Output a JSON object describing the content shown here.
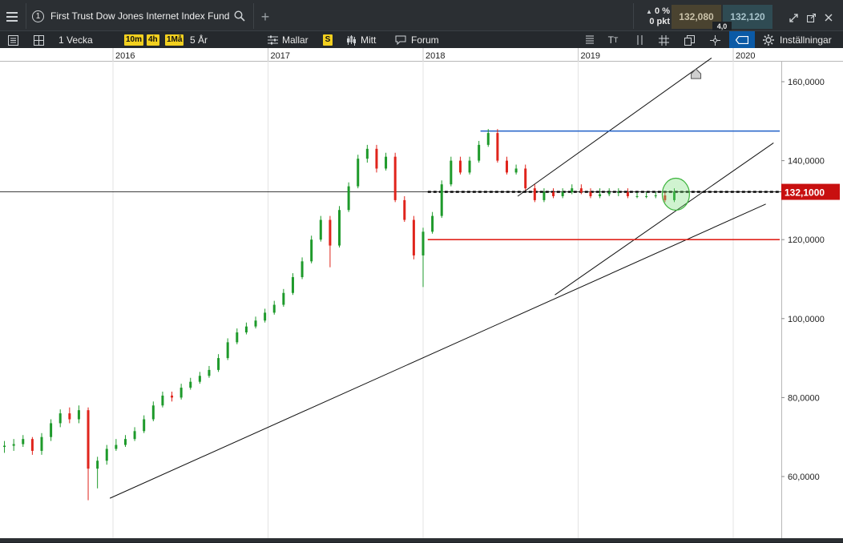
{
  "header": {
    "menu_icon": "hamburger-icon",
    "instrument_number": "1",
    "instrument_name": "First Trust Dow Jones Internet Index Fund",
    "change_pct": "0 %",
    "change_pts": "0 pkt",
    "bid": "132,080",
    "ask": "132,120",
    "spread": "4,0",
    "colors": {
      "bid_bg": "#4a4330",
      "ask_bg": "#2f4b53"
    }
  },
  "toolbar": {
    "interval": "1 Vecka",
    "timeframes": [
      "10m",
      "4h",
      "1Må"
    ],
    "range": "5 År",
    "templates": "Mallar",
    "s_chip": "S",
    "mine": "Mitt",
    "forum": "Forum",
    "settings": "Inställningar"
  },
  "chart_data": {
    "type": "candlestick",
    "x_tick_labels": [
      "2016",
      "2017",
      "2018",
      "2019",
      "2020"
    ],
    "y_tick_labels": [
      "160,0000",
      "140,0000",
      "120,0000",
      "100,0000",
      "80,0000",
      "60,0000"
    ],
    "ylim": [
      50,
      165
    ],
    "current_price_label": "132,1000",
    "current_price": 132.1,
    "grid": "vertical-only",
    "colors": {
      "up": "#1e9a2b",
      "down": "#e0241c",
      "resistance": "#1f5fc8",
      "support": "#e0241c",
      "trend": "#111111",
      "price_label": "#c80f0f"
    },
    "horizontal_lines": [
      {
        "kind": "resistance",
        "value": 147.5,
        "x_from": 2018.37,
        "x_to": 2020.3
      },
      {
        "kind": "support",
        "value": 120.0,
        "x_from": 2018.03,
        "x_to": 2020.3
      },
      {
        "kind": "dashed-current",
        "value": 132.1,
        "x_from": 2018.03,
        "x_to": 2020.3
      }
    ],
    "trend_lines": [
      {
        "from": [
          2015.98,
          54.5
        ],
        "to": [
          2020.21,
          129.0
        ]
      },
      {
        "from": [
          2018.85,
          106.0
        ],
        "to": [
          2020.26,
          144.5
        ]
      },
      {
        "from": [
          2018.61,
          131.0
        ],
        "to": [
          2019.86,
          166.0
        ]
      }
    ],
    "highlight_circle": {
      "x": 2019.63,
      "y": 131.5
    },
    "series": [
      {
        "name": "",
        "x": [
          2015.3,
          2015.36,
          2015.42,
          2015.48,
          2015.54,
          2015.6,
          2015.66,
          2015.72,
          2015.78,
          2015.84,
          2015.9,
          2015.96,
          2016.02,
          2016.08,
          2016.14,
          2016.2,
          2016.26,
          2016.32,
          2016.38,
          2016.44,
          2016.5,
          2016.56,
          2016.62,
          2016.68,
          2016.74,
          2016.8,
          2016.86,
          2016.92,
          2016.98,
          2017.04,
          2017.1,
          2017.16,
          2017.22,
          2017.28,
          2017.34,
          2017.4,
          2017.46,
          2017.52,
          2017.58,
          2017.64,
          2017.7,
          2017.76,
          2017.82,
          2017.88,
          2017.94,
          2018.0,
          2018.06,
          2018.12,
          2018.18,
          2018.24,
          2018.3,
          2018.36,
          2018.42,
          2018.48,
          2018.54,
          2018.6,
          2018.66,
          2018.72,
          2018.78,
          2018.84,
          2018.9,
          2018.96,
          2019.02,
          2019.08,
          2019.14,
          2019.2,
          2019.26,
          2019.32,
          2019.38,
          2019.44,
          2019.5,
          2019.56,
          2019.62
        ],
        "open": [
          67.5,
          67.8,
          68.2,
          69.5,
          66.5,
          70.0,
          73.5,
          76.0,
          74.5,
          76.8,
          62.0,
          64.0,
          67.0,
          68.0,
          69.5,
          71.5,
          74.5,
          78.0,
          80.5,
          80.0,
          82.5,
          84.0,
          85.5,
          87.0,
          90.0,
          94.0,
          96.5,
          98.0,
          99.5,
          101.5,
          103.5,
          106.5,
          110.5,
          114.5,
          120.0,
          125.0,
          118.5,
          127.5,
          133.5,
          140.5,
          143.0,
          138.0,
          141.0,
          130.0,
          125.0,
          116.0,
          122.0,
          126.0,
          134.0,
          140.0,
          137.0,
          140.0,
          144.0,
          147.0,
          140.0,
          137.0,
          138.0,
          133.0,
          130.0,
          132.0,
          131.0,
          132.0,
          133.0,
          132.0,
          131.0,
          131.5,
          132.0,
          132.0,
          131.0,
          131.0,
          131.0,
          131.2,
          130.0
        ],
        "close": [
          67.8,
          68.2,
          69.5,
          66.5,
          70.0,
          73.5,
          76.0,
          74.5,
          76.8,
          62.0,
          64.0,
          67.0,
          68.0,
          69.5,
          71.5,
          74.5,
          78.0,
          80.5,
          80.0,
          82.5,
          84.0,
          85.5,
          87.0,
          90.0,
          94.0,
          96.5,
          98.0,
          99.5,
          101.5,
          103.5,
          106.5,
          110.5,
          114.5,
          120.0,
          125.0,
          118.5,
          127.5,
          133.5,
          140.5,
          143.0,
          138.0,
          141.0,
          130.0,
          125.0,
          116.0,
          122.0,
          126.0,
          134.0,
          140.0,
          137.0,
          140.0,
          144.0,
          147.0,
          140.0,
          137.0,
          138.0,
          133.0,
          130.0,
          132.0,
          131.0,
          132.0,
          133.0,
          132.0,
          131.0,
          131.5,
          132.0,
          132.0,
          131.0,
          131.0,
          131.0,
          131.2,
          130.0,
          132.1
        ],
        "high": [
          69.0,
          69.5,
          70.5,
          70.0,
          71.0,
          74.5,
          77.0,
          77.5,
          78.0,
          77.5,
          65.0,
          68.0,
          69.5,
          70.5,
          72.5,
          75.5,
          79.0,
          81.5,
          81.5,
          83.5,
          85.0,
          86.5,
          88.0,
          91.0,
          95.0,
          97.5,
          99.0,
          100.5,
          102.5,
          104.5,
          107.5,
          111.5,
          115.5,
          121.0,
          126.0,
          126.0,
          128.5,
          134.5,
          141.5,
          144.0,
          144.0,
          142.0,
          142.0,
          131.0,
          126.0,
          123.0,
          127.0,
          135.0,
          141.0,
          141.0,
          141.0,
          145.0,
          148.0,
          148.0,
          141.0,
          139.0,
          139.0,
          134.0,
          133.0,
          133.0,
          133.0,
          134.0,
          134.0,
          133.0,
          133.0,
          133.0,
          133.0,
          133.0,
          132.0,
          132.0,
          132.0,
          132.0,
          133.0
        ],
        "low": [
          66.0,
          66.5,
          67.5,
          65.5,
          65.5,
          69.0,
          72.5,
          73.5,
          73.5,
          54.0,
          57.0,
          63.0,
          66.5,
          67.5,
          69.0,
          71.0,
          74.0,
          77.5,
          79.0,
          79.5,
          82.0,
          83.5,
          85.0,
          86.5,
          89.5,
          93.5,
          96.0,
          97.5,
          99.0,
          101.0,
          103.0,
          106.0,
          110.0,
          114.0,
          119.5,
          113.0,
          118.0,
          127.0,
          133.0,
          139.5,
          137.0,
          137.5,
          129.5,
          124.5,
          115.0,
          108.0,
          121.5,
          125.5,
          133.5,
          136.5,
          136.5,
          139.5,
          143.5,
          139.5,
          136.5,
          136.5,
          132.5,
          129.5,
          129.5,
          130.5,
          130.5,
          131.5,
          131.5,
          130.5,
          130.5,
          131.0,
          131.0,
          130.5,
          130.5,
          130.5,
          130.5,
          129.5,
          129.5
        ]
      }
    ]
  }
}
